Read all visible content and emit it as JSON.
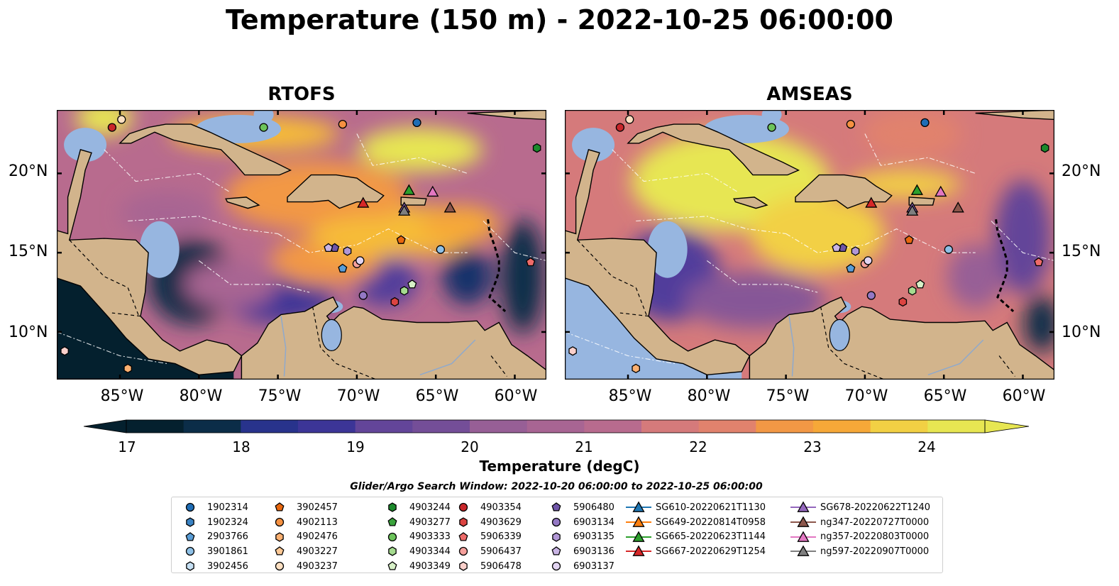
{
  "figure": {
    "title": "Temperature (150 m) - 2022-10-25 06:00:00"
  },
  "panels": [
    {
      "title": "RTOFS"
    },
    {
      "title": "AMSEAS"
    }
  ],
  "axes": {
    "lon_ticks": [
      "85°W",
      "80°W",
      "75°W",
      "70°W",
      "65°W",
      "60°W"
    ],
    "lat_ticks": [
      "20°N",
      "15°N",
      "10°N"
    ]
  },
  "map_extent": {
    "lon": [
      -89,
      -58
    ],
    "lat": [
      7,
      24
    ]
  },
  "colorbar": {
    "label": "Temperature (degC)",
    "ticks": [
      "17",
      "18",
      "19",
      "20",
      "21",
      "22",
      "23",
      "24"
    ],
    "range": [
      16.5,
      25
    ],
    "extend": "both",
    "colors": [
      "#04202e",
      "#0b2d48",
      "#18326b",
      "#28338c",
      "#3c3597",
      "#513d9b",
      "#634599",
      "#744e98",
      "#865797",
      "#975f96",
      "#a86593",
      "#b86b8e",
      "#c77286",
      "#d57a7b",
      "#e1826d",
      "#eb8b5a",
      "#f29845",
      "#f6a838",
      "#f6bc37",
      "#f2d044",
      "#e7e652"
    ]
  },
  "legend": {
    "search_window": "Glider/Argo Search Window: 2022-10-20 06:00:00 to 2022-10-25 06:00:00",
    "columns": [
      [
        {
          "label": "1902314",
          "marker": "circle",
          "color": "#1f6db5"
        },
        {
          "label": "1902324",
          "marker": "hexagon",
          "color": "#3a83c4"
        },
        {
          "label": "2903766",
          "marker": "pentagon",
          "color": "#5a9dd6"
        },
        {
          "label": "3901861",
          "marker": "circle",
          "color": "#8ec0e6"
        },
        {
          "label": "3902456",
          "marker": "hexagon",
          "color": "#c6e0f4"
        }
      ],
      [
        {
          "label": "3902457",
          "marker": "pentagon",
          "color": "#e8670e"
        },
        {
          "label": "4902113",
          "marker": "circle",
          "color": "#f59141"
        },
        {
          "label": "4902476",
          "marker": "hexagon",
          "color": "#fbb071"
        },
        {
          "label": "4903227",
          "marker": "pentagon",
          "color": "#fdc996"
        },
        {
          "label": "4903237",
          "marker": "circle",
          "color": "#fde0c2"
        }
      ],
      [
        {
          "label": "4903244",
          "marker": "hexagon",
          "color": "#1c8a2c"
        },
        {
          "label": "4903277",
          "marker": "pentagon",
          "color": "#3aa33c"
        },
        {
          "label": "4903333",
          "marker": "circle",
          "color": "#6cc35a"
        },
        {
          "label": "4903344",
          "marker": "hexagon",
          "color": "#a5db8f"
        },
        {
          "label": "4903349",
          "marker": "pentagon",
          "color": "#d7f0c7"
        }
      ],
      [
        {
          "label": "4903354",
          "marker": "circle",
          "color": "#c8262a"
        },
        {
          "label": "4903629",
          "marker": "hexagon",
          "color": "#dc4441"
        },
        {
          "label": "5906339",
          "marker": "pentagon",
          "color": "#ee6b69"
        },
        {
          "label": "5906437",
          "marker": "circle",
          "color": "#f6a09c"
        },
        {
          "label": "5906478",
          "marker": "hexagon",
          "color": "#fbd0cb"
        }
      ],
      [
        {
          "label": "5906480",
          "marker": "pentagon",
          "color": "#6f55a8"
        },
        {
          "label": "6903134",
          "marker": "circle",
          "color": "#9478c4"
        },
        {
          "label": "6903135",
          "marker": "hexagon",
          "color": "#b197d6"
        },
        {
          "label": "6903136",
          "marker": "pentagon",
          "color": "#c9b4e4"
        },
        {
          "label": "6903137",
          "marker": "circle",
          "color": "#e2d4f1"
        }
      ],
      [
        {
          "label": "SG610-20220621T1130",
          "marker": "triangle-line",
          "color": "#1f77b4"
        },
        {
          "label": "SG649-20220814T0958",
          "marker": "triangle-line",
          "color": "#ff7f0e"
        },
        {
          "label": "SG665-20220623T1144",
          "marker": "triangle-line",
          "color": "#2ca02c"
        },
        {
          "label": "SG667-20220629T1254",
          "marker": "triangle-line",
          "color": "#d62728"
        }
      ],
      [
        {
          "label": "SG678-20220622T1240",
          "marker": "triangle-line",
          "color": "#9467bd"
        },
        {
          "label": "ng347-20220727T0000",
          "marker": "triangle-line",
          "color": "#8c564b"
        },
        {
          "label": "ng357-20220803T0000",
          "marker": "triangle-line",
          "color": "#e377c2"
        },
        {
          "label": "ng597-20220907T0000",
          "marker": "triangle-line",
          "color": "#7f7f7f"
        }
      ]
    ]
  },
  "map_markers": [
    {
      "id": "1902314",
      "marker": "circle",
      "color": "#1f6db5",
      "lon": -66.2,
      "lat": 23.2
    },
    {
      "id": "3901861",
      "marker": "circle",
      "color": "#8ec0e6",
      "lon": -64.7,
      "lat": 15.2
    },
    {
      "id": "2903766",
      "marker": "pentagon",
      "color": "#5a9dd6",
      "lon": -70.9,
      "lat": 14.0
    },
    {
      "id": "3902457",
      "marker": "pentagon",
      "color": "#e8670e",
      "lon": -67.2,
      "lat": 15.8
    },
    {
      "id": "4902113",
      "marker": "circle",
      "color": "#f59141",
      "lon": -70.9,
      "lat": 23.1
    },
    {
      "id": "4903237",
      "marker": "circle",
      "color": "#fde0c2",
      "lon": -84.9,
      "lat": 23.4
    },
    {
      "id": "4902476",
      "marker": "hexagon",
      "color": "#fbb071",
      "lon": -84.5,
      "lat": 7.7
    },
    {
      "id": "4903244",
      "marker": "hexagon",
      "color": "#1c8a2c",
      "lon": -58.6,
      "lat": 21.6
    },
    {
      "id": "4903333",
      "marker": "circle",
      "color": "#6cc35a",
      "lon": -75.9,
      "lat": 22.9
    },
    {
      "id": "4903344",
      "marker": "hexagon",
      "color": "#a5db8f",
      "lon": -67.0,
      "lat": 12.6
    },
    {
      "id": "4903349",
      "marker": "pentagon",
      "color": "#d7f0c7",
      "lon": -66.5,
      "lat": 13.0
    },
    {
      "id": "4903354",
      "marker": "circle",
      "color": "#c8262a",
      "lon": -85.5,
      "lat": 22.9
    },
    {
      "id": "4903629",
      "marker": "hexagon",
      "color": "#dc4441",
      "lon": -67.6,
      "lat": 11.9
    },
    {
      "id": "5906339",
      "marker": "pentagon",
      "color": "#ee6b69",
      "lon": -59.0,
      "lat": 14.4
    },
    {
      "id": "5906437",
      "marker": "circle",
      "color": "#f6a09c",
      "lon": -70.0,
      "lat": 14.3
    },
    {
      "id": "5906478",
      "marker": "hexagon",
      "color": "#fbd0cb",
      "lon": -88.5,
      "lat": 8.8
    },
    {
      "id": "5906480",
      "marker": "pentagon",
      "color": "#6f55a8",
      "lon": -71.4,
      "lat": 15.3
    },
    {
      "id": "6903134",
      "marker": "circle",
      "color": "#9478c4",
      "lon": -69.6,
      "lat": 12.3
    },
    {
      "id": "6903135",
      "marker": "hexagon",
      "color": "#b197d6",
      "lon": -70.6,
      "lat": 15.1
    },
    {
      "id": "6903136",
      "marker": "pentagon",
      "color": "#c9b4e4",
      "lon": -71.8,
      "lat": 15.3
    },
    {
      "id": "6903137",
      "marker": "circle",
      "color": "#e2d4f1",
      "lon": -69.8,
      "lat": 14.5
    },
    {
      "id": "SG665-20220623T1144",
      "marker": "triangle",
      "color": "#2ca02c",
      "lon": -66.7,
      "lat": 18.9
    },
    {
      "id": "SG667-20220629T1254",
      "marker": "triangle",
      "color": "#d62728",
      "lon": -69.6,
      "lat": 18.1
    },
    {
      "id": "SG678-20220622T1240",
      "marker": "triangle",
      "color": "#9467bd",
      "lon": -67.0,
      "lat": 17.8
    },
    {
      "id": "ng347-20220727T0000",
      "marker": "triangle",
      "color": "#8c564b",
      "lon": -64.1,
      "lat": 17.8
    },
    {
      "id": "ng357-20220803T0000",
      "marker": "triangle",
      "color": "#e377c2",
      "lon": -65.2,
      "lat": 18.8
    },
    {
      "id": "ng597-20220907T0000",
      "marker": "triangle",
      "color": "#7f7f7f",
      "lon": -67.0,
      "lat": 17.6
    }
  ]
}
